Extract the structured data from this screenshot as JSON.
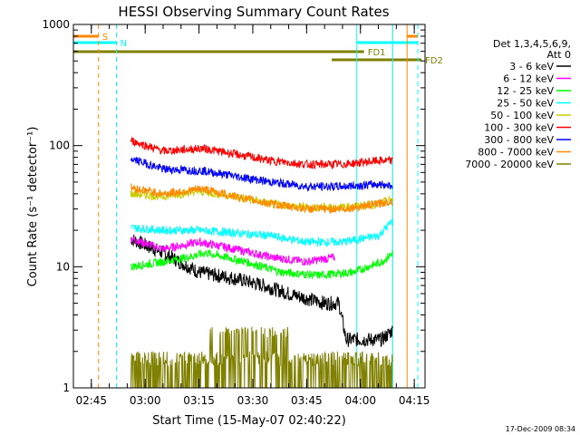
{
  "chart_data": {
    "type": "line",
    "title": "HESSI Observing Summary Count Rates",
    "xlabel": "Start Time (15-May-07 02:40:22)",
    "ylabel": "Count Rate (s⁻¹ detector⁻¹)",
    "y_scale": "log",
    "ylim": [
      1,
      1000
    ],
    "xlim": [
      "02:40",
      "04:18"
    ],
    "x_ticks": [
      "02:45",
      "03:00",
      "03:15",
      "03:30",
      "03:45",
      "04:00",
      "04:15"
    ],
    "y_ticks": [
      "1",
      "10",
      "100",
      "1000"
    ],
    "grid": false,
    "legend_position": "right",
    "legend_header": [
      "Det 1,3,4,5,6,9,",
      "Att 0"
    ],
    "series": [
      {
        "name": "3 - 6 keV",
        "color": "#000000",
        "x": [
          "02:56",
          "03:05",
          "03:15",
          "03:25",
          "03:33",
          "03:40",
          "03:50",
          "03:54",
          "03:56",
          "04:06",
          "04:09"
        ],
        "values": [
          17,
          13,
          9,
          8,
          7,
          6,
          5,
          5,
          2.5,
          2.5,
          3
        ]
      },
      {
        "name": "6 - 12 keV",
        "color": "#ff00ff",
        "x": [
          "02:56",
          "03:05",
          "03:15",
          "03:25",
          "03:35",
          "03:45",
          "03:53"
        ],
        "values": [
          17,
          14,
          16,
          14,
          12,
          11,
          12
        ]
      },
      {
        "name": "12 - 25 keV",
        "color": "#00ff00",
        "x": [
          "02:56",
          "03:05",
          "03:12",
          "03:17",
          "03:28",
          "03:38",
          "03:48",
          "03:58",
          "04:06",
          "04:09"
        ],
        "values": [
          10,
          11,
          12,
          13,
          11,
          9,
          8.5,
          9,
          11,
          13
        ]
      },
      {
        "name": "25 - 50 keV",
        "color": "#00ffff",
        "x": [
          "02:56",
          "03:05",
          "03:15",
          "03:25",
          "03:35",
          "03:45",
          "03:55",
          "04:05",
          "04:09"
        ],
        "values": [
          21,
          20,
          20,
          19,
          18,
          16,
          16,
          18,
          24
        ]
      },
      {
        "name": "50 - 100 keV",
        "color": "#cccc00",
        "x": [
          "02:56",
          "03:05",
          "03:15",
          "03:25",
          "03:35",
          "03:45",
          "03:55",
          "04:05",
          "04:09"
        ],
        "values": [
          40,
          38,
          42,
          38,
          33,
          31,
          31,
          33,
          36
        ]
      },
      {
        "name": "100 - 300 keV",
        "color": "#ff0000",
        "x": [
          "02:56",
          "03:05",
          "03:16",
          "03:25",
          "03:35",
          "03:45",
          "03:55",
          "04:05",
          "04:09"
        ],
        "values": [
          110,
          90,
          95,
          85,
          75,
          70,
          70,
          75,
          75
        ]
      },
      {
        "name": "300 - 800 keV",
        "color": "#0000ff",
        "x": [
          "02:56",
          "03:05",
          "03:16",
          "03:25",
          "03:35",
          "03:45",
          "03:55",
          "04:05",
          "04:09"
        ],
        "values": [
          78,
          64,
          62,
          56,
          50,
          46,
          46,
          48,
          47
        ]
      },
      {
        "name": "800 - 7000 keV",
        "color": "#ff8800",
        "x": [
          "02:56",
          "03:05",
          "03:16",
          "03:25",
          "03:35",
          "03:45",
          "03:55",
          "04:05",
          "04:09"
        ],
        "values": [
          45,
          40,
          44,
          38,
          33,
          30,
          30,
          33,
          35
        ]
      },
      {
        "name": "7000 - 20000 keV",
        "color": "#808000",
        "x": [
          "02:56",
          "03:10",
          "03:20",
          "03:30",
          "03:40",
          "03:50",
          "04:00",
          "04:09"
        ],
        "values": [
          1.5,
          1.5,
          2,
          1.5,
          1.5,
          1.5,
          2,
          2
        ]
      }
    ],
    "flag_bars": [
      {
        "label": "S",
        "color": "#ff8800",
        "start": "02:40",
        "end": "02:47"
      },
      {
        "label": "",
        "color": "#ff8800",
        "start": "04:13",
        "end": "04:16"
      },
      {
        "label": "N",
        "color": "#00ffff",
        "start": "02:40",
        "end": "02:52"
      },
      {
        "label": "",
        "color": "#00ffff",
        "start": "03:59",
        "end": "04:16"
      },
      {
        "label": "FD1",
        "color": "#808000",
        "start": "02:40",
        "end": "04:01"
      },
      {
        "label": "FD2",
        "color": "#808000",
        "start": "03:52",
        "end": "04:17"
      }
    ],
    "vertical_markers": [
      {
        "color": "#00ffff",
        "style": "solid",
        "x": "02:40"
      },
      {
        "color": "#ff8800",
        "style": "dashed",
        "x": "02:47"
      },
      {
        "color": "#00ffff",
        "style": "dashed",
        "x": "02:52"
      },
      {
        "color": "#00ffff",
        "style": "solid",
        "x": "03:59"
      },
      {
        "color": "#00ffff",
        "style": "solid",
        "x": "04:09"
      },
      {
        "color": "#ff8800",
        "style": "solid",
        "x": "04:13"
      },
      {
        "color": "#00ffff",
        "style": "dashed",
        "x": "04:16"
      }
    ]
  },
  "timestamp": "17-Dec-2009 08:34"
}
